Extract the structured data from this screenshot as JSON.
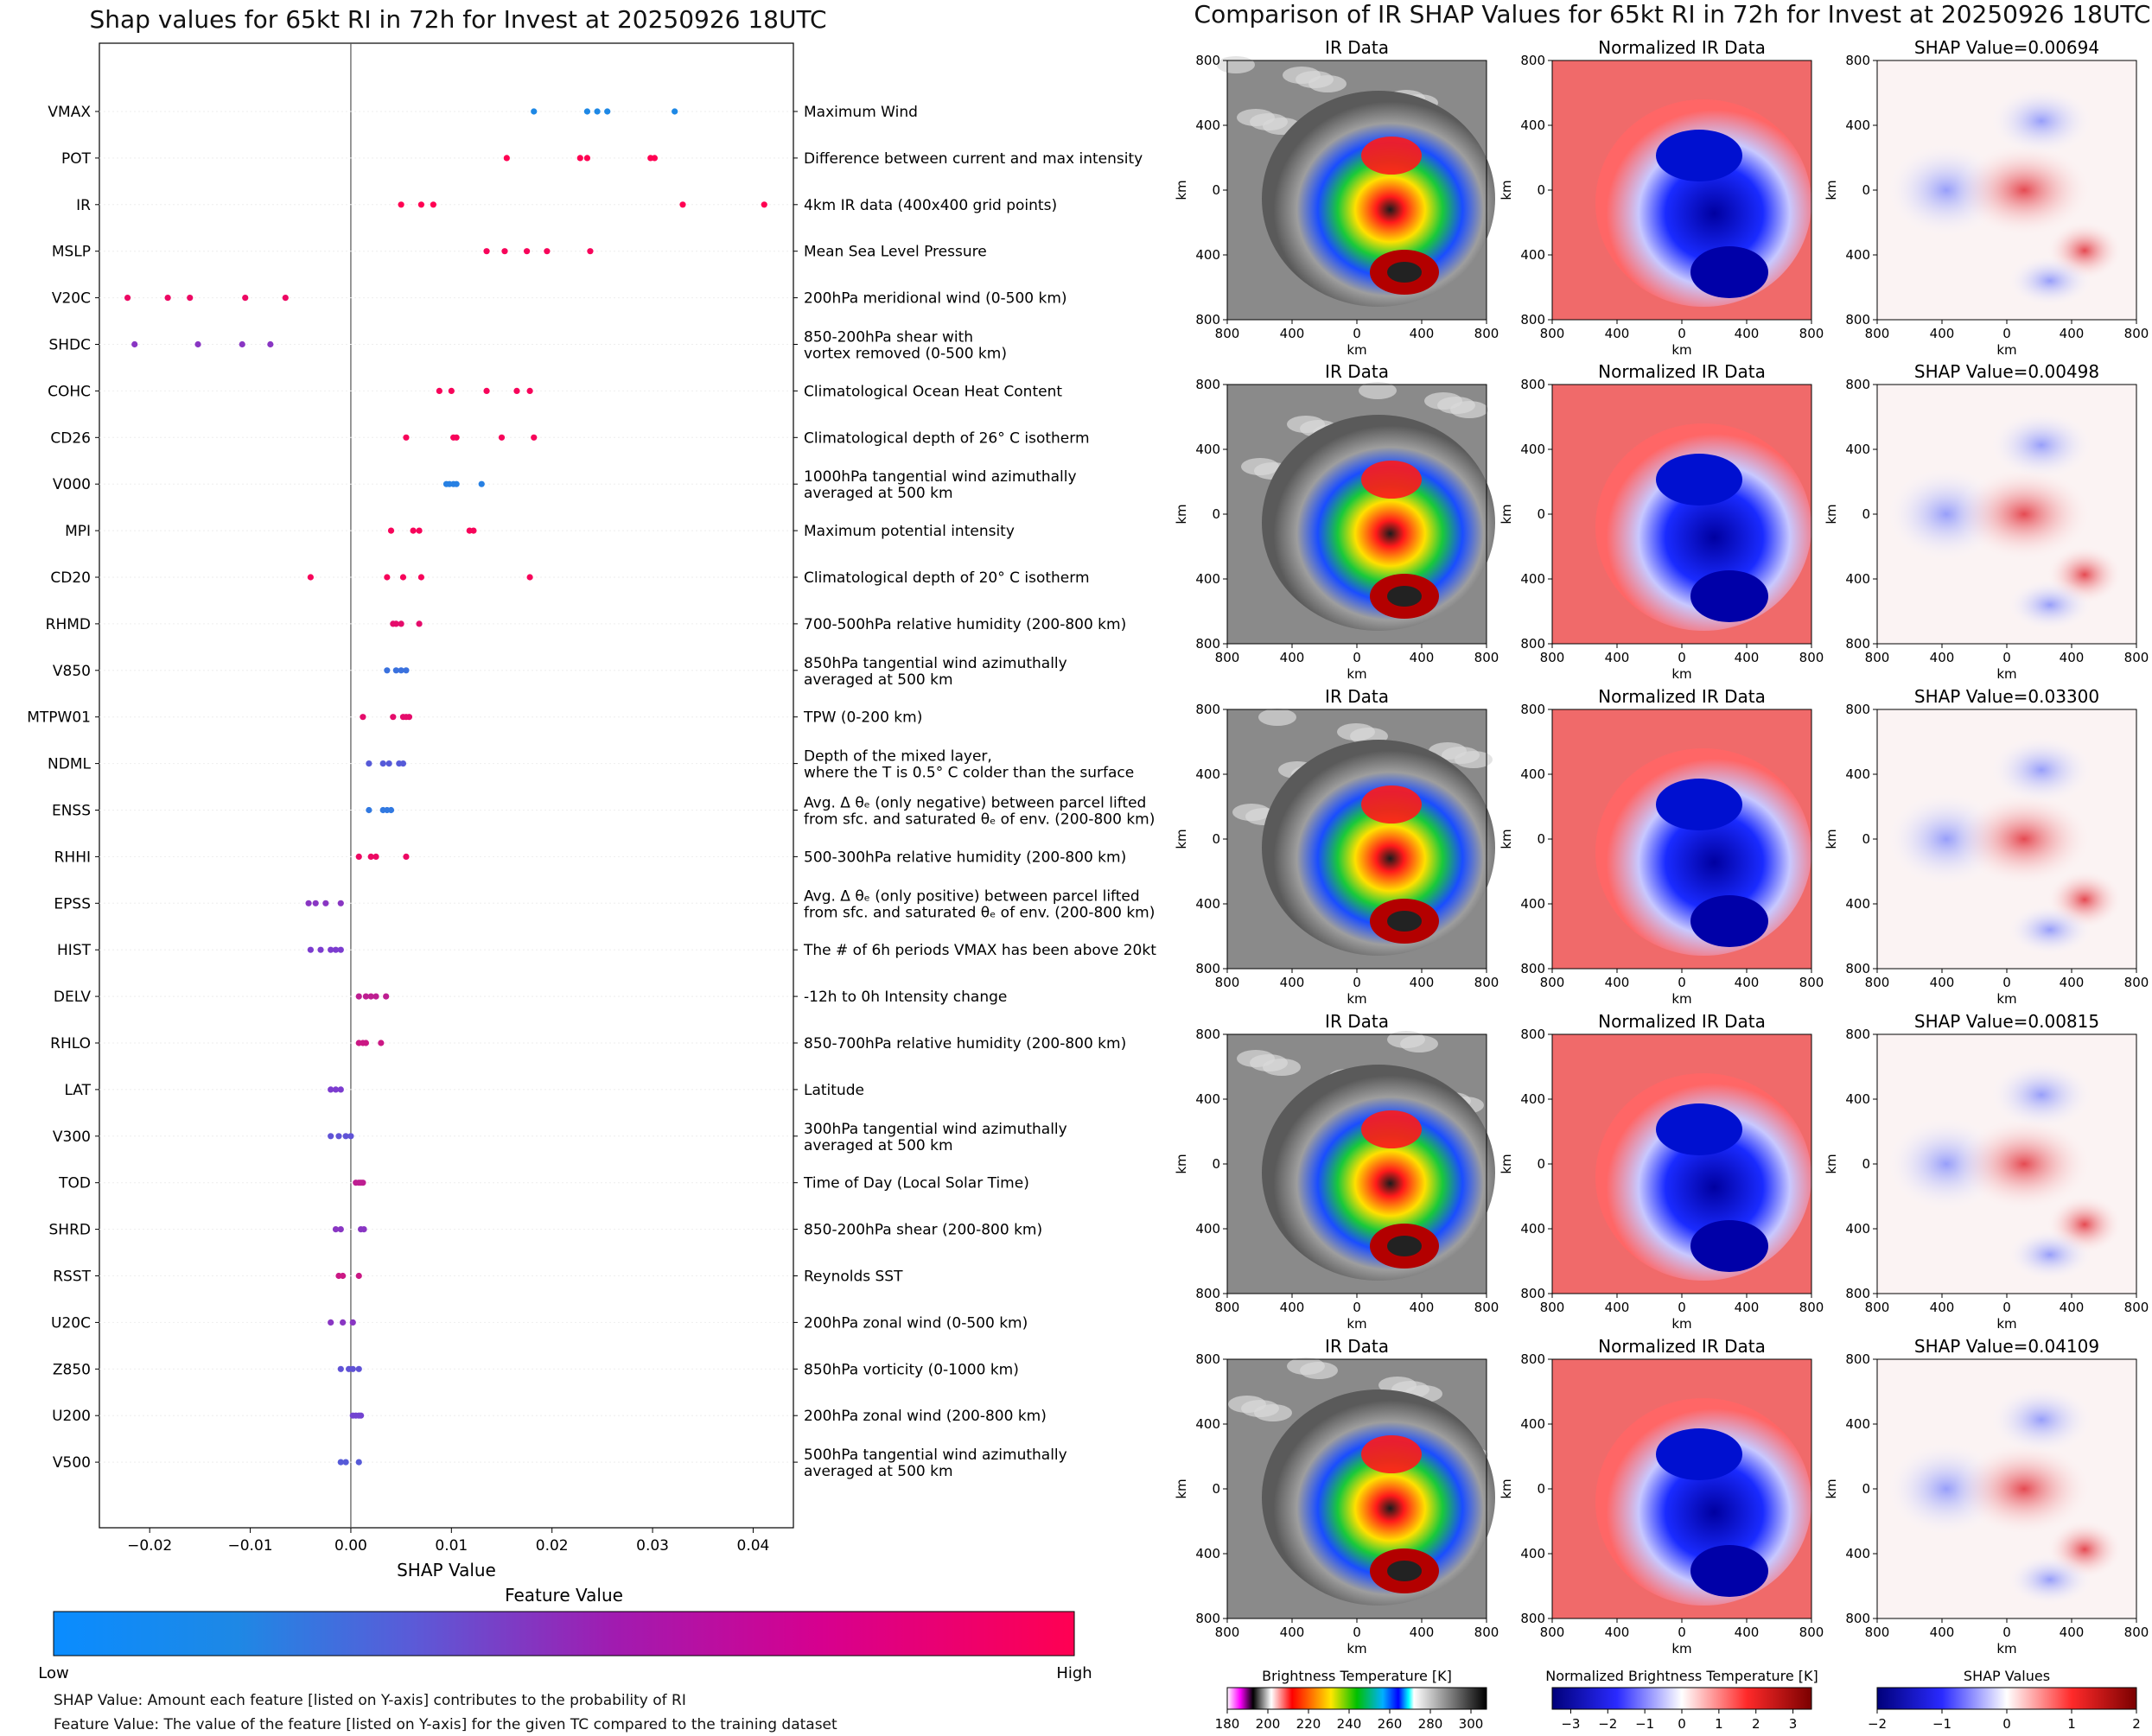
{
  "left_title": "Shap values for 65kt RI in 72h for Invest at 20250926 18UTC",
  "right_title": "Comparison of IR SHAP Values for 65kt RI in 72h for Invest at 20250926 18UTC",
  "chart_data": [
    {
      "type": "scatter",
      "title": "Shap values for 65kt RI in 72h for Invest at 20250926 18UTC",
      "xlabel": "SHAP Value",
      "xlim": [
        -0.025,
        0.044
      ],
      "xticks": [
        -0.02,
        -0.01,
        0.0,
        0.01,
        0.02,
        0.03,
        0.04
      ],
      "xtick_labels": [
        "−0.02",
        "−0.01",
        "0.00",
        "0.01",
        "0.02",
        "0.03",
        "0.04"
      ],
      "color_scale": {
        "title": "Feature Value",
        "low_label": "Low",
        "high_label": "High",
        "low_color": "#1e88e5",
        "mid_color": "#7c3ccf",
        "high_color": "#ff0052"
      },
      "features": [
        {
          "name": "VMAX",
          "desc": [
            "Maximum Wind"
          ],
          "values": [
            0.0182,
            0.0235,
            0.0245,
            0.0255,
            0.0322
          ],
          "fv": 0.0
        },
        {
          "name": "POT",
          "desc": [
            "Difference between current and max intensity"
          ],
          "values": [
            0.0155,
            0.0228,
            0.0235,
            0.0298,
            0.0302
          ],
          "fv": 1.0
        },
        {
          "name": "IR",
          "desc": [
            "4km IR data (400x400 grid points)"
          ],
          "values": [
            0.005,
            0.007,
            0.0082,
            0.033,
            0.0411
          ],
          "fv": 1.0
        },
        {
          "name": "MSLP",
          "desc": [
            "Mean Sea Level Pressure"
          ],
          "values": [
            0.0135,
            0.0153,
            0.0175,
            0.0195,
            0.0238
          ],
          "fv": 0.97
        },
        {
          "name": "V20C",
          "desc": [
            "200hPa meridional wind (0-500 km)"
          ],
          "values": [
            -0.0222,
            -0.0182,
            -0.016,
            -0.0105,
            -0.0065
          ],
          "fv": 0.93
        },
        {
          "name": "SHDC",
          "desc": [
            "850-200hPa shear with",
            "vortex removed (0-500 km)"
          ],
          "values": [
            -0.0215,
            -0.0152,
            -0.0108,
            -0.008
          ],
          "fv": 0.55
        },
        {
          "name": "COHC",
          "desc": [
            "Climatological Ocean Heat Content"
          ],
          "values": [
            0.0088,
            0.01,
            0.0135,
            0.0165,
            0.0178
          ],
          "fv": 0.97
        },
        {
          "name": "CD26",
          "desc": [
            "Climatological depth of 26° C isotherm"
          ],
          "values": [
            0.0055,
            0.0102,
            0.0105,
            0.015,
            0.0182
          ],
          "fv": 0.97
        },
        {
          "name": "V000",
          "desc": [
            "1000hPa tangential wind azimuthally",
            "averaged at 500 km"
          ],
          "values": [
            0.0095,
            0.0098,
            0.0102,
            0.0105,
            0.013
          ],
          "fv": 0.05
        },
        {
          "name": "MPI",
          "desc": [
            "Maximum potential intensity"
          ],
          "values": [
            0.004,
            0.0062,
            0.0068,
            0.0118,
            0.0122
          ],
          "fv": 0.97
        },
        {
          "name": "CD20",
          "desc": [
            "Climatological depth of 20° C isotherm"
          ],
          "values": [
            -0.004,
            0.0036,
            0.0052,
            0.007,
            0.0178
          ],
          "fv": 0.97
        },
        {
          "name": "RHMD",
          "desc": [
            "700-500hPa relative humidity (200-800 km)"
          ],
          "values": [
            0.0042,
            0.0045,
            0.005,
            0.0068
          ],
          "fv": 0.9
        },
        {
          "name": "V850",
          "desc": [
            "850hPa tangential wind azimuthally",
            "averaged at 500 km"
          ],
          "values": [
            0.0036,
            0.0045,
            0.005,
            0.0055
          ],
          "fv": 0.15
        },
        {
          "name": "MTPW01",
          "desc": [
            "TPW (0-200 km)"
          ],
          "values": [
            0.0012,
            0.0042,
            0.0052,
            0.0055,
            0.0058
          ],
          "fv": 0.9
        },
        {
          "name": "NDML",
          "desc": [
            "Depth of the mixed layer,",
            "where the T is 0.5° C colder than the surface"
          ],
          "values": [
            0.0018,
            0.0032,
            0.0038,
            0.0048,
            0.0052
          ],
          "fv": 0.3
        },
        {
          "name": "ENSS",
          "desc": [
            "Avg. Δ θₑ (only negative) between parcel lifted",
            "from sfc. and saturated θₑ of env. (200-800 km)"
          ],
          "values": [
            0.0018,
            0.0032,
            0.0036,
            0.004
          ],
          "fv": 0.1
        },
        {
          "name": "RHHI",
          "desc": [
            "500-300hPa relative humidity (200-800 km)"
          ],
          "values": [
            0.0008,
            0.002,
            0.0025,
            0.0055
          ],
          "fv": 0.93
        },
        {
          "name": "EPSS",
          "desc": [
            "Avg. Δ θₑ (only positive) between parcel lifted",
            "from sfc. and saturated θₑ of env. (200-800 km)"
          ],
          "values": [
            -0.0042,
            -0.0035,
            -0.0025,
            -0.001
          ],
          "fv": 0.55
        },
        {
          "name": "HIST",
          "desc": [
            "The # of 6h periods VMAX has been above 20kt"
          ],
          "values": [
            -0.004,
            -0.003,
            -0.002,
            -0.0015,
            -0.001
          ],
          "fv": 0.5
        },
        {
          "name": "DELV",
          "desc": [
            "-12h to 0h Intensity change"
          ],
          "values": [
            0.0008,
            0.0015,
            0.002,
            0.0025,
            0.0035
          ],
          "fv": 0.75
        },
        {
          "name": "RHLO",
          "desc": [
            "850-700hPa relative humidity (200-800 km)"
          ],
          "values": [
            0.0008,
            0.0012,
            0.0015,
            0.003
          ],
          "fv": 0.8
        },
        {
          "name": "LAT",
          "desc": [
            "Latitude"
          ],
          "values": [
            -0.002,
            -0.0015,
            -0.001
          ],
          "fv": 0.5
        },
        {
          "name": "V300",
          "desc": [
            "300hPa tangential wind azimuthally",
            "averaged at 500 km"
          ],
          "values": [
            -0.002,
            -0.0012,
            -0.0005,
            0.0
          ],
          "fv": 0.35
        },
        {
          "name": "TOD",
          "desc": [
            "Time of Day (Local Solar Time)"
          ],
          "values": [
            0.0005,
            0.0008,
            0.001,
            0.0012
          ],
          "fv": 0.75
        },
        {
          "name": "SHRD",
          "desc": [
            "850-200hPa shear (200-800 km)"
          ],
          "values": [
            -0.0015,
            -0.001,
            0.001,
            0.0013
          ],
          "fv": 0.55
        },
        {
          "name": "RSST",
          "desc": [
            "Reynolds SST"
          ],
          "values": [
            -0.0012,
            -0.0008,
            0.0008
          ],
          "fv": 0.8
        },
        {
          "name": "U20C",
          "desc": [
            "200hPa zonal wind (0-500 km)"
          ],
          "values": [
            -0.002,
            -0.0008,
            0.0002
          ],
          "fv": 0.55
        },
        {
          "name": "Z850",
          "desc": [
            "850hPa vorticity (0-1000 km)"
          ],
          "values": [
            -0.001,
            -0.0002,
            0.0002,
            0.0008
          ],
          "fv": 0.35
        },
        {
          "name": "U200",
          "desc": [
            "200hPa zonal wind (200-800 km)"
          ],
          "values": [
            0.0002,
            0.0005,
            0.0008,
            0.001
          ],
          "fv": 0.45
        },
        {
          "name": "V500",
          "desc": [
            "500hPa tangential wind azimuthally",
            "averaged at 500 km"
          ],
          "values": [
            -0.001,
            -0.0005,
            0.0008
          ],
          "fv": 0.3
        }
      ]
    },
    {
      "type": "heatmap",
      "title": "Comparison of IR SHAP Values for 65kt RI in 72h for Invest at 20250926 18UTC",
      "col_titles": [
        "IR Data",
        "Normalized IR Data"
      ],
      "shap_titles": [
        "SHAP Value=0.00694",
        "SHAP Value=0.00498",
        "SHAP Value=0.03300",
        "SHAP Value=0.00815",
        "SHAP Value=0.04109"
      ],
      "axis_label": "km",
      "tick_labels": [
        "800",
        "400",
        "0",
        "400",
        "800"
      ],
      "colorbars": [
        {
          "title": "Brightness Temperature [K]",
          "ticks": [
            "180",
            "200",
            "220",
            "240",
            "260",
            "280",
            "300"
          ]
        },
        {
          "title": "Normalized Brightness Temperature [K]",
          "ticks": [
            "−3",
            "−2",
            "−1",
            "0",
            "1",
            "2",
            "3"
          ]
        },
        {
          "title": "SHAP Values",
          "ticks": [
            "−2",
            "−1",
            "0",
            "1",
            "2"
          ],
          "exponent": "1e−5"
        }
      ]
    }
  ],
  "notes": [
    "SHAP Value: Amount each feature [listed on Y-axis] contributes to the probability of RI",
    "Feature Value: The value of the feature [listed on Y-axis] for the given TC compared to the training dataset"
  ]
}
